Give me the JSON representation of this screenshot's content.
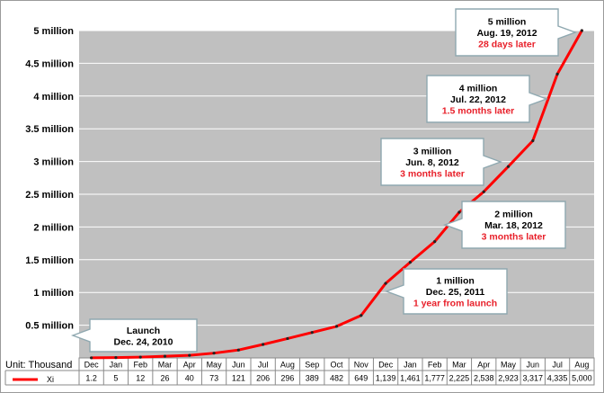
{
  "chart_data": {
    "type": "line",
    "unit_label": "Unit: Thousand",
    "series": [
      {
        "name": "Xi",
        "color": "#ff0000",
        "values": [
          1.2,
          5,
          12,
          26,
          40,
          73,
          121,
          206,
          296,
          389,
          482,
          649,
          1139,
          1461,
          1777,
          2225,
          2538,
          2923,
          3317,
          4335,
          5000
        ],
        "value_labels": [
          "1.2",
          "5",
          "12",
          "26",
          "40",
          "73",
          "121",
          "206",
          "296",
          "389",
          "482",
          "649",
          "1,139",
          "1,461",
          "1,777",
          "2,225",
          "2,538",
          "2,923",
          "3,317",
          "4,335",
          "5,000"
        ]
      }
    ],
    "categories": [
      "Dec",
      "Jan",
      "Feb",
      "Mar",
      "Apr",
      "May",
      "Jun",
      "Jul",
      "Aug",
      "Sep",
      "Oct",
      "Nov",
      "Dec",
      "Jan",
      "Feb",
      "Mar",
      "Apr",
      "May",
      "Jun",
      "Jul",
      "Aug"
    ],
    "y_ticks": [
      {
        "value": 500,
        "label": "0.5 million"
      },
      {
        "value": 1000,
        "label": "1 million"
      },
      {
        "value": 1500,
        "label": "1.5 million"
      },
      {
        "value": 2000,
        "label": "2 million"
      },
      {
        "value": 2500,
        "label": "2.5 million"
      },
      {
        "value": 3000,
        "label": "3 million"
      },
      {
        "value": 3500,
        "label": "3.5 million"
      },
      {
        "value": 4000,
        "label": "4 million"
      },
      {
        "value": 4500,
        "label": "4.5 million"
      },
      {
        "value": 5000,
        "label": "5 million"
      }
    ],
    "ylim": [
      0,
      5000
    ],
    "grid": true,
    "annotations": [
      {
        "line1": "Launch",
        "line2": "Dec. 24, 2010",
        "line3": ""
      },
      {
        "line1": "1 million",
        "line2": "Dec. 25, 2011",
        "line3": "1 year from launch"
      },
      {
        "line1": "2 million",
        "line2": "Mar. 18, 2012",
        "line3": "3 months later"
      },
      {
        "line1": "3 million",
        "line2": "Jun. 8, 2012",
        "line3": "3 months later"
      },
      {
        "line1": "4 million",
        "line2": "Jul. 22, 2012",
        "line3": "1.5 months later"
      },
      {
        "line1": "5 million",
        "line2": "Aug. 19, 2012",
        "line3": "28 days later"
      }
    ],
    "colors": {
      "plot_bg": "#c0c0c0",
      "grid": "#ffffff",
      "callout_bg": "#ffffff",
      "callout_border": "#8fa8b0",
      "highlight_text": "#e8202a"
    }
  }
}
